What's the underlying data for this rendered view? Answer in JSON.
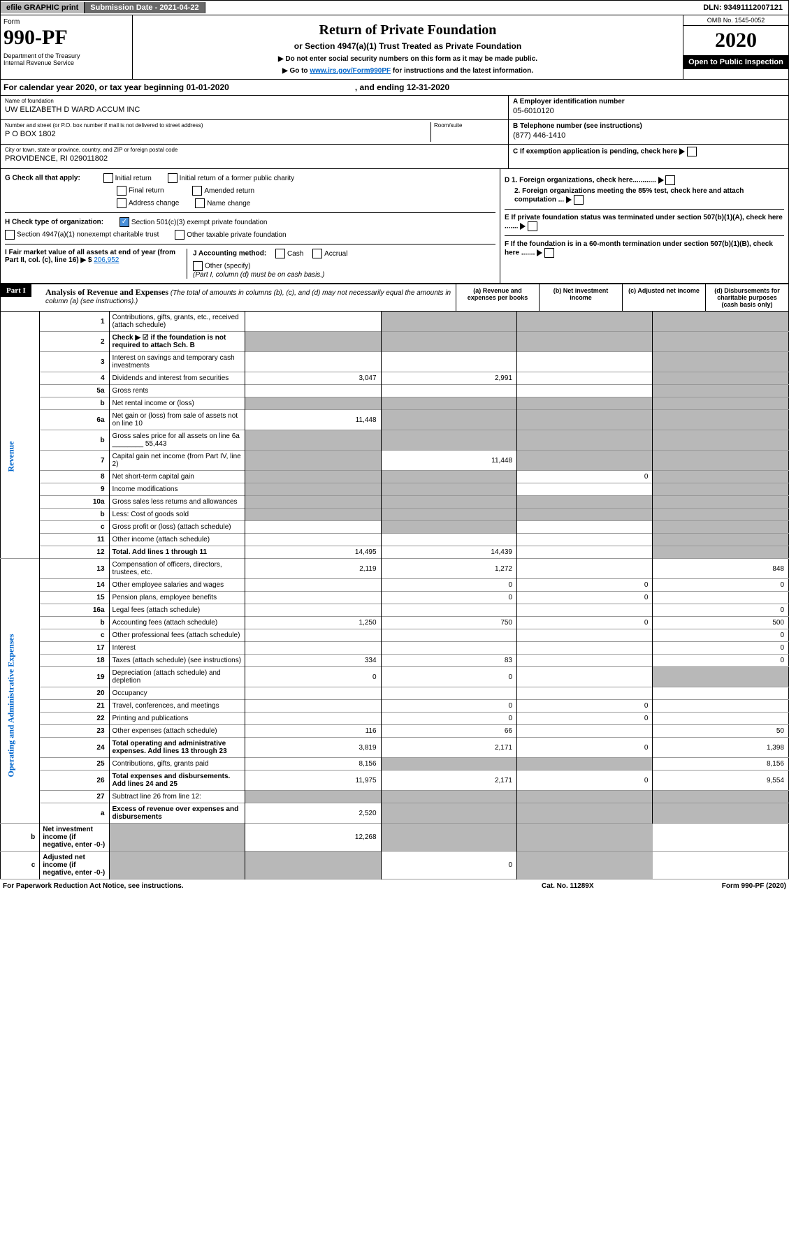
{
  "topbar": {
    "efile": "efile GRAPHIC print",
    "subdate_lbl": "Submission Date - 2021-04-22",
    "dln": "DLN: 93491112007121"
  },
  "hdr": {
    "form": "Form",
    "num": "990-PF",
    "dept": "Department of the Treasury",
    "irs": "Internal Revenue Service",
    "title": "Return of Private Foundation",
    "sub": "or Section 4947(a)(1) Trust Treated as Private Foundation",
    "note1": "▶ Do not enter social security numbers on this form as it may be made public.",
    "note2": "▶ Go to ",
    "link": "www.irs.gov/Form990PF",
    "note3": " for instructions and the latest information.",
    "omb": "OMB No. 1545-0052",
    "year": "2020",
    "open": "Open to Public Inspection"
  },
  "cal": {
    "txt": "For calendar year 2020, or tax year beginning 01-01-2020",
    "end": ", and ending 12-31-2020"
  },
  "info": {
    "name_lbl": "Name of foundation",
    "name": "UW ELIZABETH D WARD ACCUM INC",
    "addr_lbl": "Number and street (or P.O. box number if mail is not delivered to street address)",
    "addr": "P O BOX 1802",
    "room_lbl": "Room/suite",
    "city_lbl": "City or town, state or province, country, and ZIP or foreign postal code",
    "city": "PROVIDENCE, RI  029011802",
    "ein_lbl": "A Employer identification number",
    "ein": "05-6010120",
    "tel_lbl": "B Telephone number (see instructions)",
    "tel": "(877) 446-1410",
    "c_lbl": "C If exemption application is pending, check here"
  },
  "g": {
    "lbl": "G Check all that apply:",
    "opts": [
      "Initial return",
      "Initial return of a former public charity",
      "Final return",
      "Amended return",
      "Address change",
      "Name change"
    ]
  },
  "h": {
    "lbl": "H Check type of organization:",
    "o1": "Section 501(c)(3) exempt private foundation",
    "o2": "Section 4947(a)(1) nonexempt charitable trust",
    "o3": "Other taxable private foundation"
  },
  "i": {
    "lbl": "I Fair market value of all assets at end of year (from Part II, col. (c), line 16) ▶ $",
    "val": "206,952"
  },
  "j": {
    "lbl": "J Accounting method:",
    "o1": "Cash",
    "o2": "Accrual",
    "o3": "Other (specify)",
    "note": "(Part I, column (d) must be on cash basis.)"
  },
  "d": {
    "d1": "D 1. Foreign organizations, check here............",
    "d2": "2. Foreign organizations meeting the 85% test, check here and attach computation ...",
    "e": "E  If private foundation status was terminated under section 507(b)(1)(A), check here .......",
    "f": "F  If the foundation is in a 60-month termination under section 507(b)(1)(B), check here ......."
  },
  "part1": {
    "lbl": "Part I",
    "title": "Analysis of Revenue and Expenses",
    "sub": "(The total of amounts in columns (b), (c), and (d) may not necessarily equal the amounts in column (a) (see instructions).)",
    "cols": [
      "(a)  Revenue and expenses per books",
      "(b)  Net investment income",
      "(c)  Adjusted net income",
      "(d)  Disbursements for charitable purposes (cash basis only)"
    ]
  },
  "rev_lbl": "Revenue",
  "exp_lbl": "Operating and Administrative Expenses",
  "rows": [
    {
      "n": "1",
      "d": "Contributions, gifts, grants, etc., received (attach schedule)",
      "a": "",
      "b": "g",
      "c": "g",
      "e": "g"
    },
    {
      "n": "2",
      "d": "Check ▶ ☑ if the foundation is not required to attach Sch. B",
      "a": "g",
      "b": "g",
      "c": "g",
      "e": "g",
      "bold": 1
    },
    {
      "n": "3",
      "d": "Interest on savings and temporary cash investments",
      "a": "",
      "b": "",
      "c": "",
      "e": "g"
    },
    {
      "n": "4",
      "d": "Dividends and interest from securities",
      "a": "3,047",
      "b": "2,991",
      "c": "",
      "e": "g"
    },
    {
      "n": "5a",
      "d": "Gross rents",
      "a": "",
      "b": "",
      "c": "",
      "e": "g"
    },
    {
      "n": "b",
      "d": "Net rental income or (loss)",
      "a": "g",
      "b": "g",
      "c": "g",
      "e": "g"
    },
    {
      "n": "6a",
      "d": "Net gain or (loss) from sale of assets not on line 10",
      "a": "11,448",
      "b": "g",
      "c": "g",
      "e": "g"
    },
    {
      "n": "b",
      "d": "Gross sales price for all assets on line 6a ________ 55,443",
      "a": "g",
      "b": "g",
      "c": "g",
      "e": "g"
    },
    {
      "n": "7",
      "d": "Capital gain net income (from Part IV, line 2)",
      "a": "g",
      "b": "11,448",
      "c": "g",
      "e": "g"
    },
    {
      "n": "8",
      "d": "Net short-term capital gain",
      "a": "g",
      "b": "g",
      "c": "0",
      "e": "g"
    },
    {
      "n": "9",
      "d": "Income modifications",
      "a": "g",
      "b": "g",
      "c": "",
      "e": "g"
    },
    {
      "n": "10a",
      "d": "Gross sales less returns and allowances",
      "a": "g",
      "b": "g",
      "c": "g",
      "e": "g"
    },
    {
      "n": "b",
      "d": "Less: Cost of goods sold",
      "a": "g",
      "b": "g",
      "c": "g",
      "e": "g"
    },
    {
      "n": "c",
      "d": "Gross profit or (loss) (attach schedule)",
      "a": "",
      "b": "g",
      "c": "",
      "e": "g"
    },
    {
      "n": "11",
      "d": "Other income (attach schedule)",
      "a": "",
      "b": "",
      "c": "",
      "e": "g"
    },
    {
      "n": "12",
      "d": "Total. Add lines 1 through 11",
      "a": "14,495",
      "b": "14,439",
      "c": "",
      "e": "g",
      "bold": 1
    },
    {
      "n": "13",
      "d": "Compensation of officers, directors, trustees, etc.",
      "a": "2,119",
      "b": "1,272",
      "c": "",
      "e": "848"
    },
    {
      "n": "14",
      "d": "Other employee salaries and wages",
      "a": "",
      "b": "0",
      "c": "0",
      "e": "0"
    },
    {
      "n": "15",
      "d": "Pension plans, employee benefits",
      "a": "",
      "b": "0",
      "c": "0",
      "e": ""
    },
    {
      "n": "16a",
      "d": "Legal fees (attach schedule)",
      "a": "",
      "b": "",
      "c": "",
      "e": "0"
    },
    {
      "n": "b",
      "d": "Accounting fees (attach schedule)",
      "a": "1,250",
      "b": "750",
      "c": "0",
      "e": "500"
    },
    {
      "n": "c",
      "d": "Other professional fees (attach schedule)",
      "a": "",
      "b": "",
      "c": "",
      "e": "0"
    },
    {
      "n": "17",
      "d": "Interest",
      "a": "",
      "b": "",
      "c": "",
      "e": "0"
    },
    {
      "n": "18",
      "d": "Taxes (attach schedule) (see instructions)",
      "a": "334",
      "b": "83",
      "c": "",
      "e": "0"
    },
    {
      "n": "19",
      "d": "Depreciation (attach schedule) and depletion",
      "a": "0",
      "b": "0",
      "c": "",
      "e": "g"
    },
    {
      "n": "20",
      "d": "Occupancy",
      "a": "",
      "b": "",
      "c": "",
      "e": ""
    },
    {
      "n": "21",
      "d": "Travel, conferences, and meetings",
      "a": "",
      "b": "0",
      "c": "0",
      "e": ""
    },
    {
      "n": "22",
      "d": "Printing and publications",
      "a": "",
      "b": "0",
      "c": "0",
      "e": ""
    },
    {
      "n": "23",
      "d": "Other expenses (attach schedule)",
      "a": "116",
      "b": "66",
      "c": "",
      "e": "50"
    },
    {
      "n": "24",
      "d": "Total operating and administrative expenses. Add lines 13 through 23",
      "a": "3,819",
      "b": "2,171",
      "c": "0",
      "e": "1,398",
      "bold": 1
    },
    {
      "n": "25",
      "d": "Contributions, gifts, grants paid",
      "a": "8,156",
      "b": "g",
      "c": "g",
      "e": "8,156"
    },
    {
      "n": "26",
      "d": "Total expenses and disbursements. Add lines 24 and 25",
      "a": "11,975",
      "b": "2,171",
      "c": "0",
      "e": "9,554",
      "bold": 1
    },
    {
      "n": "27",
      "d": "Subtract line 26 from line 12:",
      "a": "g",
      "b": "g",
      "c": "g",
      "e": "g"
    },
    {
      "n": "a",
      "d": "Excess of revenue over expenses and disbursements",
      "a": "2,520",
      "b": "g",
      "c": "g",
      "e": "g",
      "bold": 1
    },
    {
      "n": "b",
      "d": "Net investment income (if negative, enter -0-)",
      "a": "g",
      "b": "12,268",
      "c": "g",
      "e": "g",
      "bold": 1
    },
    {
      "n": "c",
      "d": "Adjusted net income (if negative, enter -0-)",
      "a": "g",
      "b": "g",
      "c": "0",
      "e": "g",
      "bold": 1
    }
  ],
  "footer": {
    "f1": "For Paperwork Reduction Act Notice, see instructions.",
    "f2": "Cat. No. 11289X",
    "f3": "Form 990-PF (2020)"
  }
}
